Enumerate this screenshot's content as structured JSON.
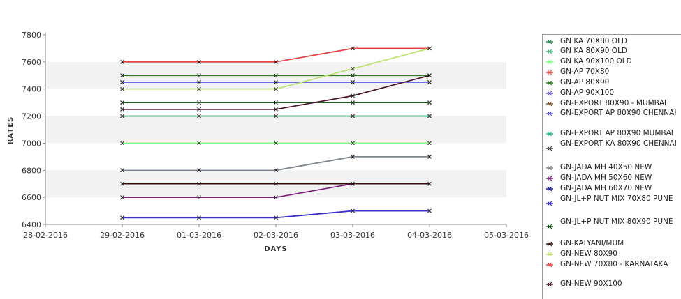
{
  "chart_data": {
    "type": "line",
    "title": "",
    "xlabel": "DAYS",
    "ylabel": "RATES",
    "x_tick_labels": [
      "28-02-2016",
      "29-02-2016",
      "01-03-2016",
      "02-03-2016",
      "03-03-2016",
      "04-03-2016",
      "05-03-2016"
    ],
    "x": [
      "29-02-2016",
      "01-03-2016",
      "02-03-2016",
      "03-03-2016",
      "04-03-2016"
    ],
    "xlim": [
      "28-02-2016",
      "05-03-2016"
    ],
    "ylim": [
      6400,
      7800
    ],
    "y_ticks": [
      6400,
      6600,
      6800,
      7000,
      7200,
      7400,
      7600,
      7800
    ],
    "grid": "alternating horizontal bands",
    "legend_position": "right",
    "series": [
      {
        "name": "GN KA 70X80 OLD",
        "color": "#2e8b57",
        "values": [
          7300,
          7300,
          7300,
          7300,
          7300
        ]
      },
      {
        "name": "GN KA 80X90 OLD",
        "color": "#3cb371",
        "values": [
          7200,
          7200,
          7200,
          7200,
          7200
        ]
      },
      {
        "name": "GN KA 90X100 OLD",
        "color": "#7cfc7c",
        "values": [
          7000,
          7000,
          7000,
          7000,
          7000
        ]
      },
      {
        "name": "GN-AP 70X80",
        "color": "#e8413f",
        "values": [
          7600,
          7600,
          7600,
          7700,
          7700
        ]
      },
      {
        "name": "GN-AP 80X90",
        "color": "#2f7d1f",
        "values": [
          7500,
          7500,
          7500,
          7500,
          7500
        ]
      },
      {
        "name": "GN-AP 90X100",
        "color": "#6a5acd",
        "values": [
          7450,
          7450,
          7450,
          7450,
          7450
        ]
      },
      {
        "name": "GN-EXPORT 80X90 - MUMBAI",
        "color": "#8b5a2b",
        "values": [
          7250,
          7250,
          7250,
          7350,
          7500
        ]
      },
      {
        "name": "GN-EXPORT AP 80X90 CHENNAI",
        "color": "#5555dd",
        "values": [
          7450,
          7450,
          7450,
          7450,
          7450
        ]
      },
      {
        "name": "GN-EXPORT AP 80X90 MUMBAI",
        "color": "#20c080",
        "values": [
          7200,
          7200,
          7200,
          7200,
          7200
        ]
      },
      {
        "name": "GN-EXPORT KA 80X90 CHENNAI",
        "color": "#444444",
        "values": [
          6800,
          6800,
          6800,
          6900,
          6900
        ]
      },
      {
        "name": "GN-JADA MH 40X50 NEW",
        "color": "#808890",
        "values": [
          6800,
          6800,
          6800,
          6900,
          6900
        ]
      },
      {
        "name": "GN-JADA MH 50X60 NEW",
        "color": "#7b1f7b",
        "values": [
          6600,
          6600,
          6600,
          6700,
          6700
        ]
      },
      {
        "name": "GN-JADA MH 60X70 NEW",
        "color": "#1a1a8c",
        "values": [
          6450,
          6450,
          6450,
          6500,
          6500
        ]
      },
      {
        "name": "GN-JL+P NUT MIX 70X80 PUNE",
        "color": "#3b2fd0",
        "values": [
          6450,
          6450,
          6450,
          6500,
          6500
        ]
      },
      {
        "name": "GN-JL+P NUT MIX 80X90 PUNE",
        "color": "#1f5f1f",
        "values": [
          7300,
          7300,
          7300,
          7300,
          7300
        ]
      },
      {
        "name": "GN-KALYANI/MUM",
        "color": "#3a0a0a",
        "values": [
          6700,
          6700,
          6700,
          6700,
          6700
        ]
      },
      {
        "name": "GN-NEW   80X90",
        "color": "#b8e06a",
        "values": [
          7400,
          7400,
          7400,
          7550,
          7700
        ]
      },
      {
        "name": "GN-NEW  70X80 - KARNATAKA",
        "color": "#e8413f",
        "values": [
          7600,
          7600,
          7600,
          7700,
          7700
        ]
      },
      {
        "name": "GN-NEW 90X100",
        "color": "#4a1535",
        "values": [
          7250,
          7250,
          7250,
          7350,
          7500
        ]
      }
    ]
  }
}
